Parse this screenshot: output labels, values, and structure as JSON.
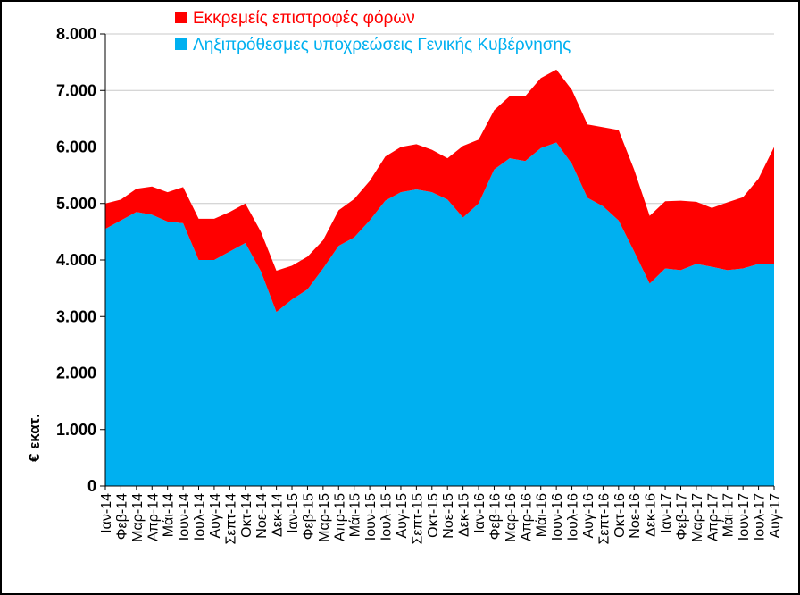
{
  "chart_data": {
    "type": "area",
    "stacked": true,
    "ylabel": "€ εκατ.",
    "ylim": [
      0,
      8000
    ],
    "yticks": [
      0,
      1000,
      2000,
      3000,
      4000,
      5000,
      6000,
      7000,
      8000
    ],
    "ytick_labels": [
      "0",
      "1.000",
      "2.000",
      "3.000",
      "4.000",
      "5.000",
      "6.000",
      "7.000",
      "8.000"
    ],
    "grid": true,
    "legend_position": "top",
    "categories": [
      "Ιαν-14",
      "Φεβ-14",
      "Μαρ-14",
      "Απρ-14",
      "Μάι-14",
      "Ιουν-14",
      "Ιουλ-14",
      "Αυγ-14",
      "Σεπτ-14",
      "Οκτ-14",
      "Νοε-14",
      "Δεκ-14",
      "Ιαν-15",
      "Φεβ-15",
      "Μαρ-15",
      "Απρ-15",
      "Μάι-15",
      "Ιουν-15",
      "Ιουλ-15",
      "Αυγ-15",
      "Σεπτ-15",
      "Οκτ-15",
      "Νοε-15",
      "Δεκ-15",
      "Ιαν-16",
      "Φεβ-16",
      "Μαρ-16",
      "Απρ-16",
      "Μάι-16",
      "Ιουν-16",
      "Ιουλ-16",
      "Αυγ-16",
      "Σεπτ-16",
      "Οκτ-16",
      "Νοε-16",
      "Δεκ-16",
      "Ιαν-17",
      "Φεβ-17",
      "Μαρ-17",
      "Απρ-17",
      "Μάι-17",
      "Ιουν-17",
      "Ιουλ-17",
      "Αυγ-17"
    ],
    "series": [
      {
        "name": "Ληξιπρόθεσμες υποχρεώσεις Γενικής Κυβέρνησης",
        "color": "#00b0f0",
        "values": [
          4550,
          4700,
          4850,
          4800,
          4680,
          4650,
          4000,
          4000,
          4150,
          4300,
          3800,
          3080,
          3300,
          3480,
          3850,
          4250,
          4400,
          4700,
          5050,
          5200,
          5250,
          5200,
          5070,
          4750,
          5000,
          5600,
          5800,
          5750,
          5980,
          6080,
          5700,
          5100,
          4950,
          4700,
          4150,
          3580,
          3850,
          3820,
          3930,
          3880,
          3820,
          3850,
          3930,
          3920
        ]
      },
      {
        "name": "Εκκρεμείς επιστροφές φόρων",
        "color": "#ff0000",
        "values": [
          450,
          370,
          410,
          500,
          520,
          640,
          730,
          730,
          700,
          700,
          700,
          730,
          600,
          580,
          500,
          630,
          680,
          700,
          780,
          800,
          800,
          750,
          730,
          1270,
          1130,
          1050,
          1100,
          1150,
          1240,
          1290,
          1310,
          1300,
          1400,
          1600,
          1450,
          1200,
          1190,
          1230,
          1100,
          1040,
          1200,
          1260,
          1510,
          2080
        ]
      }
    ]
  }
}
